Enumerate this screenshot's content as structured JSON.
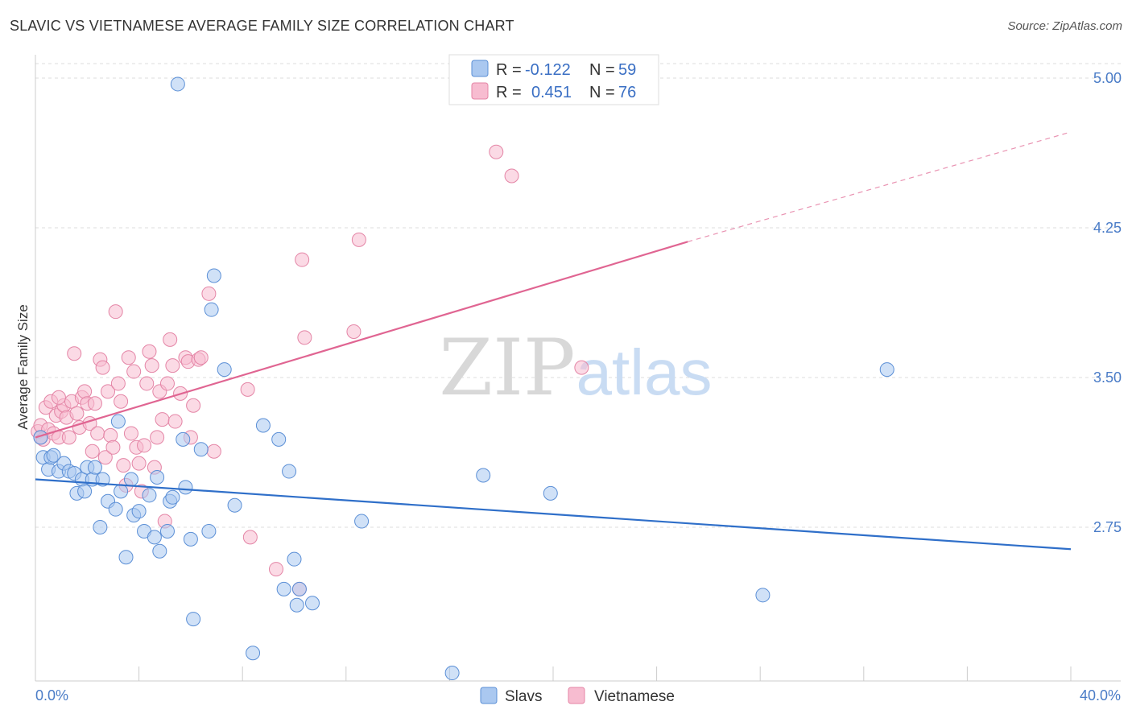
{
  "title": "SLAVIC VS VIETNAMESE AVERAGE FAMILY SIZE CORRELATION CHART",
  "source": "Source: ZipAtlas.com",
  "colors": {
    "slavs_fill": "#aac8f0",
    "slavs_stroke": "#5b8fd6",
    "slavs_line": "#2f6fc9",
    "viet_fill": "#f7bcd0",
    "viet_stroke": "#e485a6",
    "viet_line": "#e06592",
    "tick_text": "#4a7cc7",
    "grid": "#dddddd"
  },
  "legend": {
    "r_label": "R =",
    "n_label": "N =",
    "rows": [
      {
        "series": "Slavs",
        "r": "-0.122",
        "n": "59"
      },
      {
        "series": "Vietnamese",
        "r": "0.451",
        "n": "76"
      }
    ]
  },
  "chart_data": {
    "type": "scatter",
    "title": "SLAVIC VS VIETNAMESE AVERAGE FAMILY SIZE CORRELATION CHART",
    "xlabel": "",
    "ylabel": "Average Family Size",
    "xlim": [
      0,
      40
    ],
    "ylim": [
      2.0,
      5.1
    ],
    "x_tick_labels": [
      "0.0%",
      "40.0%"
    ],
    "y_ticks": [
      2.75,
      3.5,
      4.25,
      5.0
    ],
    "y_tick_labels": [
      "2.75",
      "3.50",
      "4.25",
      "5.00"
    ],
    "watermark": {
      "zip": "ZIP",
      "atlas": "atlas"
    },
    "series": [
      {
        "name": "Slavs",
        "trend": {
          "x0": 0,
          "y0": 2.99,
          "x1": 40,
          "y1": 2.64
        },
        "points": [
          [
            0.2,
            3.2
          ],
          [
            0.3,
            3.1
          ],
          [
            0.5,
            3.04
          ],
          [
            0.6,
            3.1
          ],
          [
            0.7,
            3.11
          ],
          [
            0.9,
            3.03
          ],
          [
            1.1,
            3.07
          ],
          [
            1.3,
            3.03
          ],
          [
            1.5,
            3.02
          ],
          [
            1.6,
            2.92
          ],
          [
            1.8,
            2.99
          ],
          [
            1.9,
            2.93
          ],
          [
            2.0,
            3.05
          ],
          [
            2.2,
            2.99
          ],
          [
            2.3,
            3.05
          ],
          [
            2.5,
            2.75
          ],
          [
            2.6,
            2.99
          ],
          [
            2.8,
            2.88
          ],
          [
            3.1,
            2.84
          ],
          [
            3.2,
            3.28
          ],
          [
            3.3,
            2.93
          ],
          [
            3.5,
            2.6
          ],
          [
            3.7,
            2.99
          ],
          [
            3.8,
            2.81
          ],
          [
            4.0,
            2.83
          ],
          [
            4.2,
            2.73
          ],
          [
            4.4,
            2.91
          ],
          [
            4.6,
            2.7
          ],
          [
            4.7,
            3.0
          ],
          [
            4.8,
            2.63
          ],
          [
            5.1,
            2.73
          ],
          [
            5.2,
            2.88
          ],
          [
            5.3,
            2.9
          ],
          [
            5.5,
            4.97
          ],
          [
            5.7,
            3.19
          ],
          [
            5.8,
            2.95
          ],
          [
            6.0,
            2.69
          ],
          [
            6.1,
            2.29
          ],
          [
            6.4,
            3.14
          ],
          [
            6.7,
            2.73
          ],
          [
            6.8,
            3.84
          ],
          [
            6.9,
            4.01
          ],
          [
            7.3,
            3.54
          ],
          [
            7.7,
            2.86
          ],
          [
            8.4,
            2.12
          ],
          [
            8.8,
            3.26
          ],
          [
            9.4,
            3.19
          ],
          [
            9.6,
            2.44
          ],
          [
            9.8,
            3.03
          ],
          [
            10.0,
            2.59
          ],
          [
            10.1,
            2.36
          ],
          [
            10.2,
            2.44
          ],
          [
            10.7,
            2.37
          ],
          [
            12.6,
            2.78
          ],
          [
            16.1,
            2.02
          ],
          [
            17.3,
            3.01
          ],
          [
            19.9,
            2.92
          ],
          [
            28.1,
            2.41
          ],
          [
            32.9,
            3.54
          ]
        ]
      },
      {
        "name": "Vietnamese",
        "trend": {
          "x0": 0,
          "y0": 3.2,
          "x1": 25.2,
          "y1": 4.18,
          "dash_x1": 40,
          "dash_y1": 4.73
        },
        "points": [
          [
            0.1,
            3.23
          ],
          [
            0.2,
            3.26
          ],
          [
            0.3,
            3.19
          ],
          [
            0.4,
            3.35
          ],
          [
            0.5,
            3.24
          ],
          [
            0.6,
            3.38
          ],
          [
            0.7,
            3.22
          ],
          [
            0.8,
            3.31
          ],
          [
            0.9,
            3.2
          ],
          [
            1.0,
            3.33
          ],
          [
            1.1,
            3.36
          ],
          [
            1.2,
            3.3
          ],
          [
            1.3,
            3.2
          ],
          [
            1.4,
            3.38
          ],
          [
            1.5,
            3.62
          ],
          [
            1.6,
            3.32
          ],
          [
            1.7,
            3.25
          ],
          [
            1.8,
            3.4
          ],
          [
            1.9,
            3.43
          ],
          [
            2.0,
            3.37
          ],
          [
            2.1,
            3.27
          ],
          [
            2.2,
            3.13
          ],
          [
            2.3,
            3.37
          ],
          [
            2.4,
            3.22
          ],
          [
            2.5,
            3.59
          ],
          [
            2.6,
            3.55
          ],
          [
            2.7,
            3.1
          ],
          [
            2.8,
            3.43
          ],
          [
            2.9,
            3.21
          ],
          [
            3.0,
            3.15
          ],
          [
            3.1,
            3.83
          ],
          [
            3.2,
            3.47
          ],
          [
            3.3,
            3.38
          ],
          [
            3.4,
            3.06
          ],
          [
            3.5,
            2.96
          ],
          [
            3.6,
            3.6
          ],
          [
            3.7,
            3.22
          ],
          [
            3.8,
            3.53
          ],
          [
            3.9,
            3.15
          ],
          [
            4.0,
            3.07
          ],
          [
            4.1,
            2.93
          ],
          [
            4.2,
            3.16
          ],
          [
            4.3,
            3.47
          ],
          [
            4.4,
            3.63
          ],
          [
            4.5,
            3.56
          ],
          [
            4.6,
            3.05
          ],
          [
            4.7,
            3.2
          ],
          [
            4.8,
            3.43
          ],
          [
            4.9,
            3.29
          ],
          [
            5.0,
            2.78
          ],
          [
            5.1,
            3.47
          ],
          [
            5.2,
            3.69
          ],
          [
            5.3,
            3.56
          ],
          [
            5.4,
            3.28
          ],
          [
            5.6,
            3.42
          ],
          [
            5.8,
            3.6
          ],
          [
            5.9,
            3.58
          ],
          [
            6.0,
            3.2
          ],
          [
            6.1,
            3.36
          ],
          [
            6.3,
            3.59
          ],
          [
            6.4,
            3.6
          ],
          [
            6.7,
            3.92
          ],
          [
            6.9,
            3.13
          ],
          [
            8.2,
            3.44
          ],
          [
            8.3,
            2.7
          ],
          [
            9.3,
            2.54
          ],
          [
            10.2,
            2.44
          ],
          [
            10.3,
            4.09
          ],
          [
            10.4,
            3.7
          ],
          [
            12.3,
            3.73
          ],
          [
            12.5,
            4.19
          ],
          [
            17.8,
            4.63
          ],
          [
            18.4,
            4.51
          ],
          [
            21.1,
            3.55
          ],
          [
            0.2,
            3.2
          ],
          [
            0.9,
            3.4
          ]
        ]
      }
    ],
    "legend_position": "top-center"
  }
}
